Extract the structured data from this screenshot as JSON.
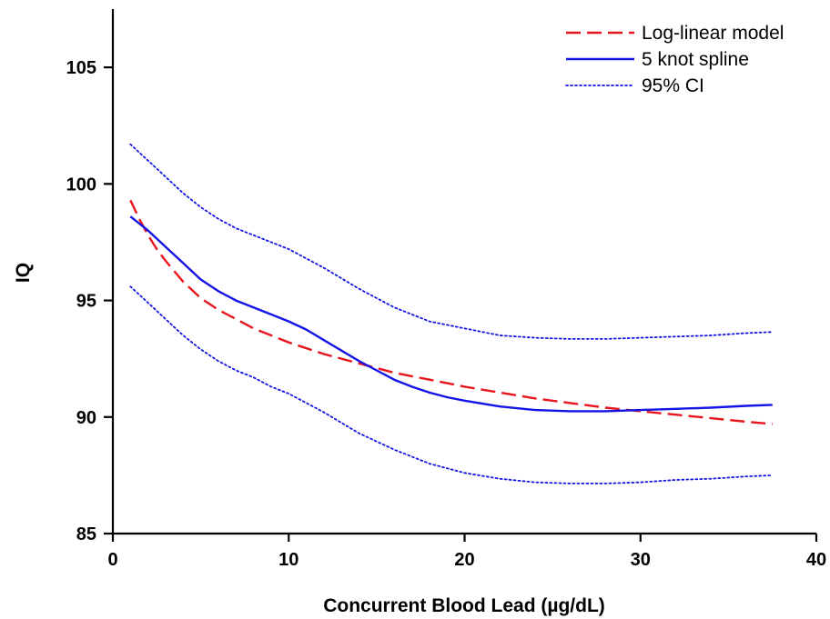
{
  "chart_data": {
    "type": "line",
    "title": "",
    "xlabel": "Concurrent Blood Lead (µg/dL)",
    "ylabel": "IQ",
    "xlim": [
      0,
      40
    ],
    "ylim": [
      85,
      107.5
    ],
    "x_ticks": [
      0,
      10,
      20,
      30,
      40
    ],
    "y_ticks": [
      85,
      90,
      95,
      100,
      105
    ],
    "x_tick_labels": [
      "0",
      "10",
      "20",
      "30",
      "40"
    ],
    "y_tick_labels": [
      "85",
      "90",
      "95",
      "100",
      "105"
    ],
    "grid": false,
    "legend_position": "top-right",
    "series": [
      {
        "name": "Log-linear model",
        "style": "dashed",
        "color": "#e8141e",
        "x": [
          1,
          1.5,
          2,
          2.5,
          3,
          4,
          5,
          6,
          7,
          8,
          10,
          12,
          14,
          16,
          18,
          20,
          22,
          24,
          26,
          28,
          30,
          32,
          34,
          36,
          37.5
        ],
        "y": [
          99.3,
          98.5,
          97.8,
          97.2,
          96.7,
          95.8,
          95.1,
          94.6,
          94.2,
          93.8,
          93.2,
          92.7,
          92.3,
          91.9,
          91.6,
          91.3,
          91.05,
          90.8,
          90.6,
          90.4,
          90.25,
          90.1,
          89.95,
          89.8,
          89.7
        ]
      },
      {
        "name": "5 knot spline",
        "style": "solid",
        "color": "#1414e6",
        "x": [
          1,
          2,
          3,
          4,
          5,
          6,
          7,
          8,
          9,
          10,
          11,
          12,
          13,
          14,
          15,
          16,
          17,
          18,
          19,
          20,
          22,
          24,
          26,
          28,
          30,
          32,
          34,
          36,
          37.5
        ],
        "y": [
          98.6,
          98.0,
          97.3,
          96.6,
          95.9,
          95.4,
          95.0,
          94.7,
          94.4,
          94.1,
          93.75,
          93.3,
          92.85,
          92.4,
          92.0,
          91.6,
          91.3,
          91.05,
          90.85,
          90.7,
          90.45,
          90.3,
          90.25,
          90.25,
          90.3,
          90.35,
          90.4,
          90.48,
          90.52
        ]
      },
      {
        "name": "95% CI",
        "style": "dotted",
        "color": "#1414e6",
        "x": [
          1,
          2,
          3,
          4,
          5,
          6,
          7,
          8,
          9,
          10,
          12,
          14,
          16,
          18,
          20,
          22,
          24,
          26,
          28,
          30,
          32,
          34,
          36,
          37.5
        ],
        "y": [
          101.7,
          101.0,
          100.3,
          99.6,
          99.0,
          98.5,
          98.1,
          97.8,
          97.5,
          97.2,
          96.4,
          95.5,
          94.7,
          94.1,
          93.8,
          93.5,
          93.4,
          93.35,
          93.35,
          93.4,
          93.45,
          93.5,
          93.6,
          93.65
        ]
      },
      {
        "name": "",
        "style": "dotted",
        "color": "#1414e6",
        "x": [
          1,
          2,
          3,
          4,
          5,
          6,
          7,
          8,
          9,
          10,
          12,
          14,
          16,
          18,
          20,
          22,
          24,
          26,
          28,
          30,
          32,
          34,
          36,
          37.5
        ],
        "y": [
          95.6,
          94.9,
          94.2,
          93.5,
          92.9,
          92.4,
          92.0,
          91.7,
          91.3,
          91.0,
          90.2,
          89.3,
          88.6,
          88.0,
          87.6,
          87.35,
          87.2,
          87.15,
          87.15,
          87.2,
          87.3,
          87.35,
          87.45,
          87.5
        ]
      }
    ],
    "legend": [
      {
        "label": "Log-linear model",
        "style": "dashed",
        "color": "#e8141e"
      },
      {
        "label": "5 knot spline",
        "style": "solid",
        "color": "#1414e6"
      },
      {
        "label": "95% CI",
        "style": "dotted",
        "color": "#1414e6"
      }
    ]
  }
}
